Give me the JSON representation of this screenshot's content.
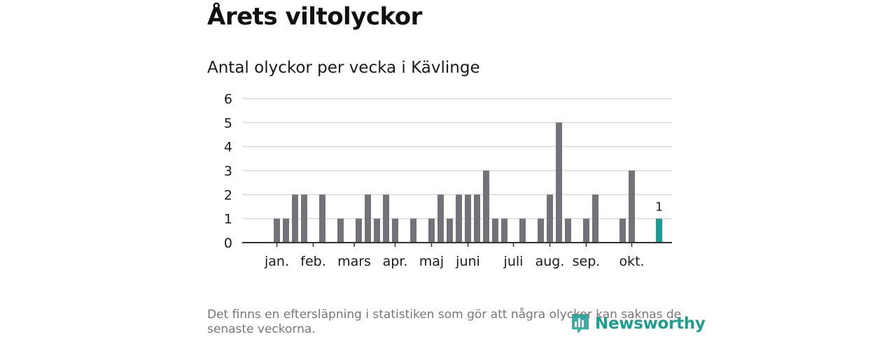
{
  "header": {
    "title": "Årets viltolyckor"
  },
  "footer": {
    "note": "Det finns en eftersläpning i statistiken som gör att några olyckor kan saknas de senaste veckorna.",
    "brand": "Newsworthy"
  },
  "colors": {
    "bar": "#737278",
    "highlight": "#1a9e94",
    "grid": "#d9d9d9",
    "axis": "#333333",
    "brand": "#1c9e91"
  },
  "chart_data": {
    "type": "bar",
    "title": "Antal olyckor per vecka i Kävlinge",
    "xlabel": "",
    "ylabel": "",
    "ylim": [
      0,
      6
    ],
    "yticks": [
      0,
      1,
      2,
      3,
      4,
      5,
      6
    ],
    "grid": true,
    "weeks": [
      1,
      2,
      3,
      4,
      5,
      6,
      7,
      8,
      9,
      10,
      11,
      12,
      13,
      14,
      15,
      16,
      17,
      18,
      19,
      20,
      21,
      22,
      23,
      24,
      25,
      26,
      27,
      28,
      29,
      30,
      31,
      32,
      33,
      34,
      35,
      36,
      37,
      38,
      39,
      40,
      41,
      42,
      43,
      44,
      45,
      46
    ],
    "values": [
      0,
      0,
      1,
      1,
      2,
      2,
      0,
      2,
      0,
      1,
      0,
      1,
      2,
      1,
      2,
      1,
      0,
      1,
      0,
      1,
      2,
      1,
      2,
      2,
      2,
      3,
      1,
      1,
      0,
      1,
      0,
      1,
      2,
      5,
      1,
      0,
      1,
      2,
      0,
      0,
      1,
      3,
      0,
      0,
      1,
      0
    ],
    "highlight_week": 45,
    "highlight_label": "1",
    "month_labels": [
      {
        "label": "jan.",
        "week": 3.0
      },
      {
        "label": "feb.",
        "week": 7.0
      },
      {
        "label": "mars",
        "week": 11.5
      },
      {
        "label": "apr.",
        "week": 16.0
      },
      {
        "label": "maj",
        "week": 20.0
      },
      {
        "label": "juni",
        "week": 24.0
      },
      {
        "label": "juli",
        "week": 29.0
      },
      {
        "label": "aug.",
        "week": 33.0
      },
      {
        "label": "sep.",
        "week": 37.0
      },
      {
        "label": "okt.",
        "week": 42.0
      }
    ]
  }
}
